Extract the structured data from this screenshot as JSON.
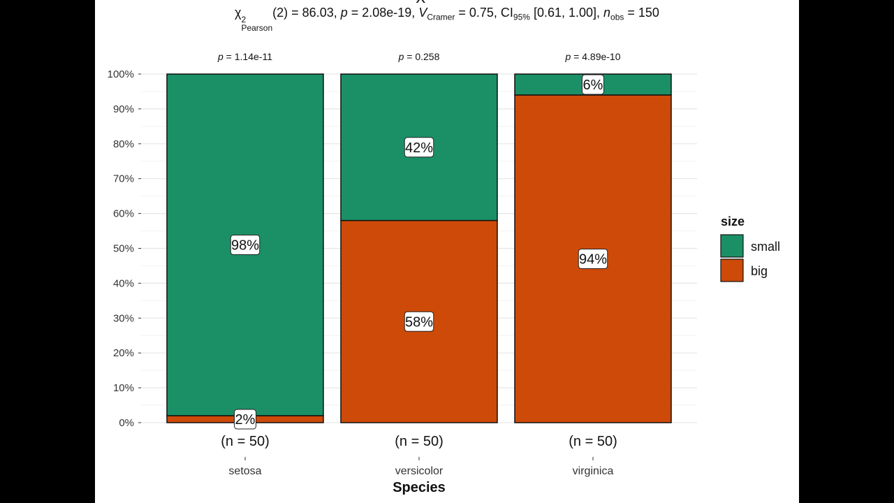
{
  "title": {
    "chi": "χ",
    "chi_sup": "2",
    "chi_sub": "Pearson",
    "df": "(2) = 86.03, ",
    "p_sym": "p",
    "p_val": " = 2.08e-19, ",
    "v_sym": "V",
    "v_hat": "^",
    "v_sub": "Cramer",
    "v_val": " = 0.75, CI",
    "ci_sub": "95%",
    "ci_val": " [0.61, 1.00], ",
    "n_sym": "n",
    "n_sub": "obs",
    "n_val": " = 150"
  },
  "colors": {
    "small": "#1B9066",
    "big": "#CE4A08",
    "grid_major": "#E6E6E6",
    "grid_minor": "#F2F2F2",
    "text": "#333333"
  },
  "chart_data": {
    "type": "bar",
    "stacked": true,
    "percent": true,
    "categories": [
      "setosa",
      "versicolor",
      "virginica"
    ],
    "series": [
      {
        "name": "small",
        "values": [
          98,
          42,
          6
        ]
      },
      {
        "name": "big",
        "values": [
          2,
          58,
          94
        ]
      }
    ],
    "data_labels": {
      "small": [
        "98%",
        "42%",
        "6%"
      ],
      "big": [
        "2%",
        "58%",
        "94%"
      ]
    },
    "p_labels": [
      "1.14e-11",
      "0.258",
      "4.89e-10"
    ],
    "p_prefix": "p",
    "n_labels": [
      "(n = 50)",
      "(n = 50)",
      "(n = 50)"
    ],
    "xlabel": "Species",
    "ylabel": "",
    "ylim": [
      0,
      100
    ],
    "yticks": [
      0,
      10,
      20,
      30,
      40,
      50,
      60,
      70,
      80,
      90,
      100
    ],
    "ytick_labels": [
      "0%",
      "10%",
      "20%",
      "30%",
      "40%",
      "50%",
      "60%",
      "70%",
      "80%",
      "90%",
      "100%"
    ],
    "grid": true,
    "legend": {
      "title": "size",
      "position": "right",
      "entries": [
        "small",
        "big"
      ]
    }
  }
}
